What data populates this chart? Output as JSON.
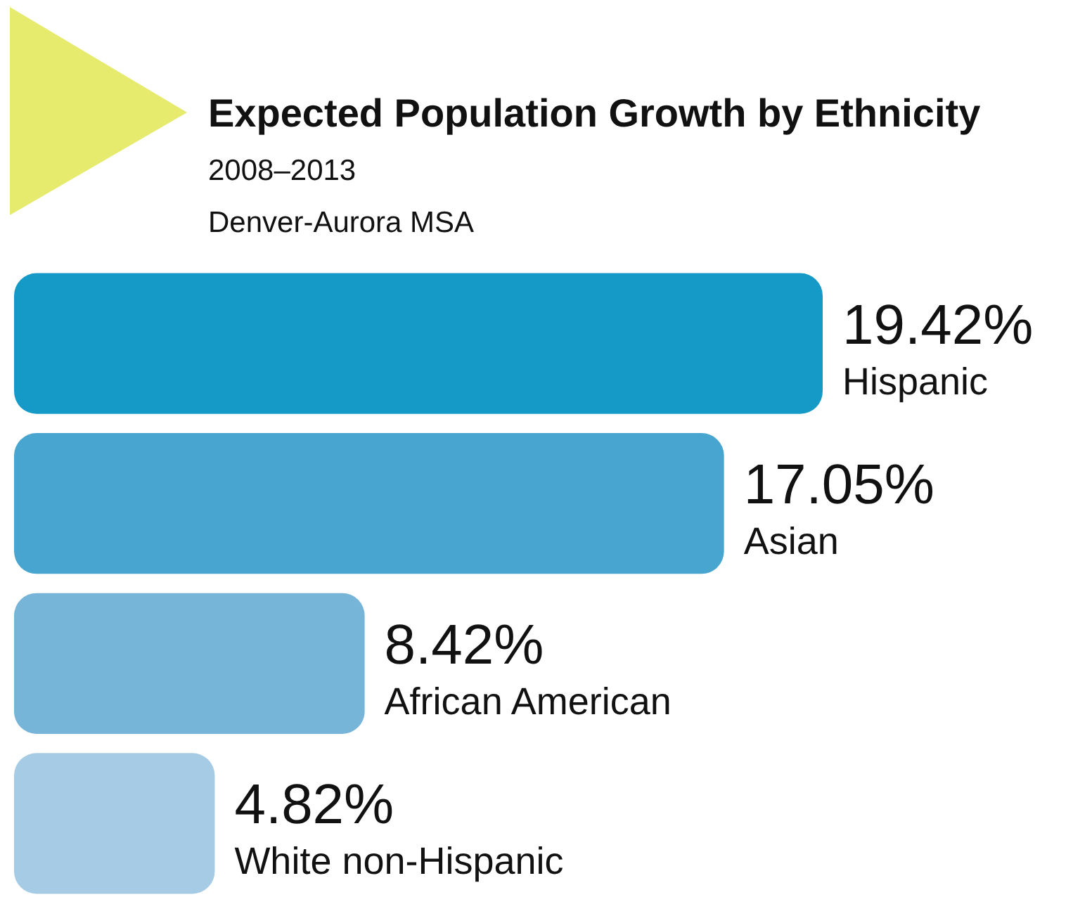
{
  "chart_data": {
    "type": "bar",
    "orientation": "horizontal",
    "title": "Expected Population Growth by Ethnicity",
    "subtitle": "2008–2013",
    "annotations": [
      "Denver-Aurora MSA"
    ],
    "categories": [
      "Hispanic",
      "Asian",
      "African American",
      "White non-Hispanic"
    ],
    "values": [
      19.42,
      17.05,
      8.42,
      4.82
    ],
    "colors": [
      "#159ac8",
      "#47a5d0",
      "#76b5d8",
      "#a6cbe4"
    ],
    "value_labels": [
      "19.42%",
      "17.05%",
      "8.42%",
      "4.82%"
    ]
  }
}
